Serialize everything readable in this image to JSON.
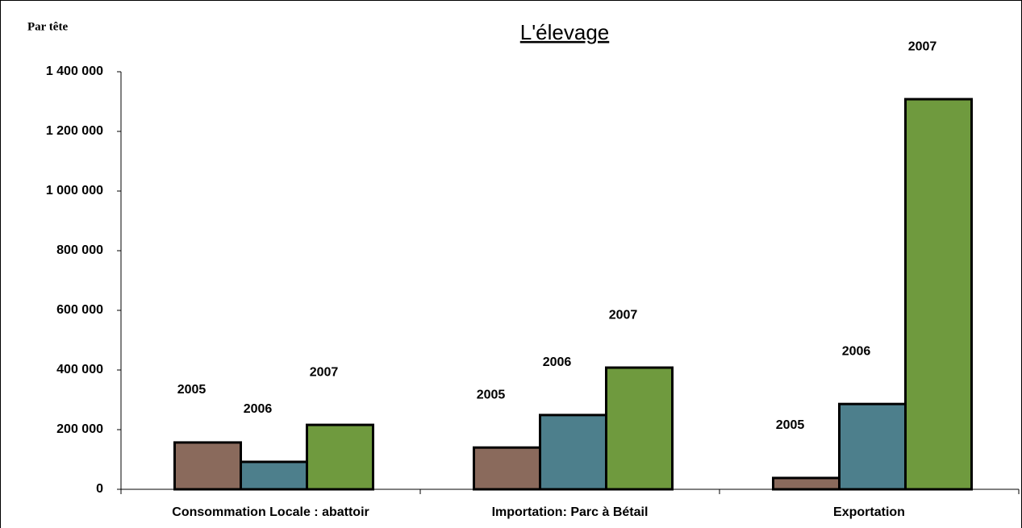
{
  "chart_data": {
    "type": "bar",
    "title": "L'élevage",
    "ylabel": "Par tête",
    "categories": [
      "Consommation Locale : abattoir",
      "Importation: Parc à Bétail",
      "Exportation"
    ],
    "series": [
      {
        "name": "2005",
        "color": "#8a6a5c",
        "values": [
          157000,
          140000,
          38000
        ]
      },
      {
        "name": "2006",
        "color": "#4d7f8c",
        "values": [
          92000,
          249000,
          286000
        ]
      },
      {
        "name": "2007",
        "color": "#6f9a3e",
        "values": [
          216000,
          408000,
          1308000
        ]
      }
    ],
    "ylim": [
      0,
      1400000
    ],
    "yticks": [
      0,
      {
        "value": 200000,
        "label": "200 000"
      },
      {
        "value": 400000,
        "label": "400 000"
      },
      {
        "value": 600000,
        "label": "600 000"
      },
      {
        "value": 800000,
        "label": "800 000"
      },
      {
        "value": 1000000,
        "label": "1 000 000"
      },
      {
        "value": 1200000,
        "label": "1 200 000"
      },
      {
        "value": 1400000,
        "label": "1 400 000"
      }
    ],
    "grid": false
  }
}
